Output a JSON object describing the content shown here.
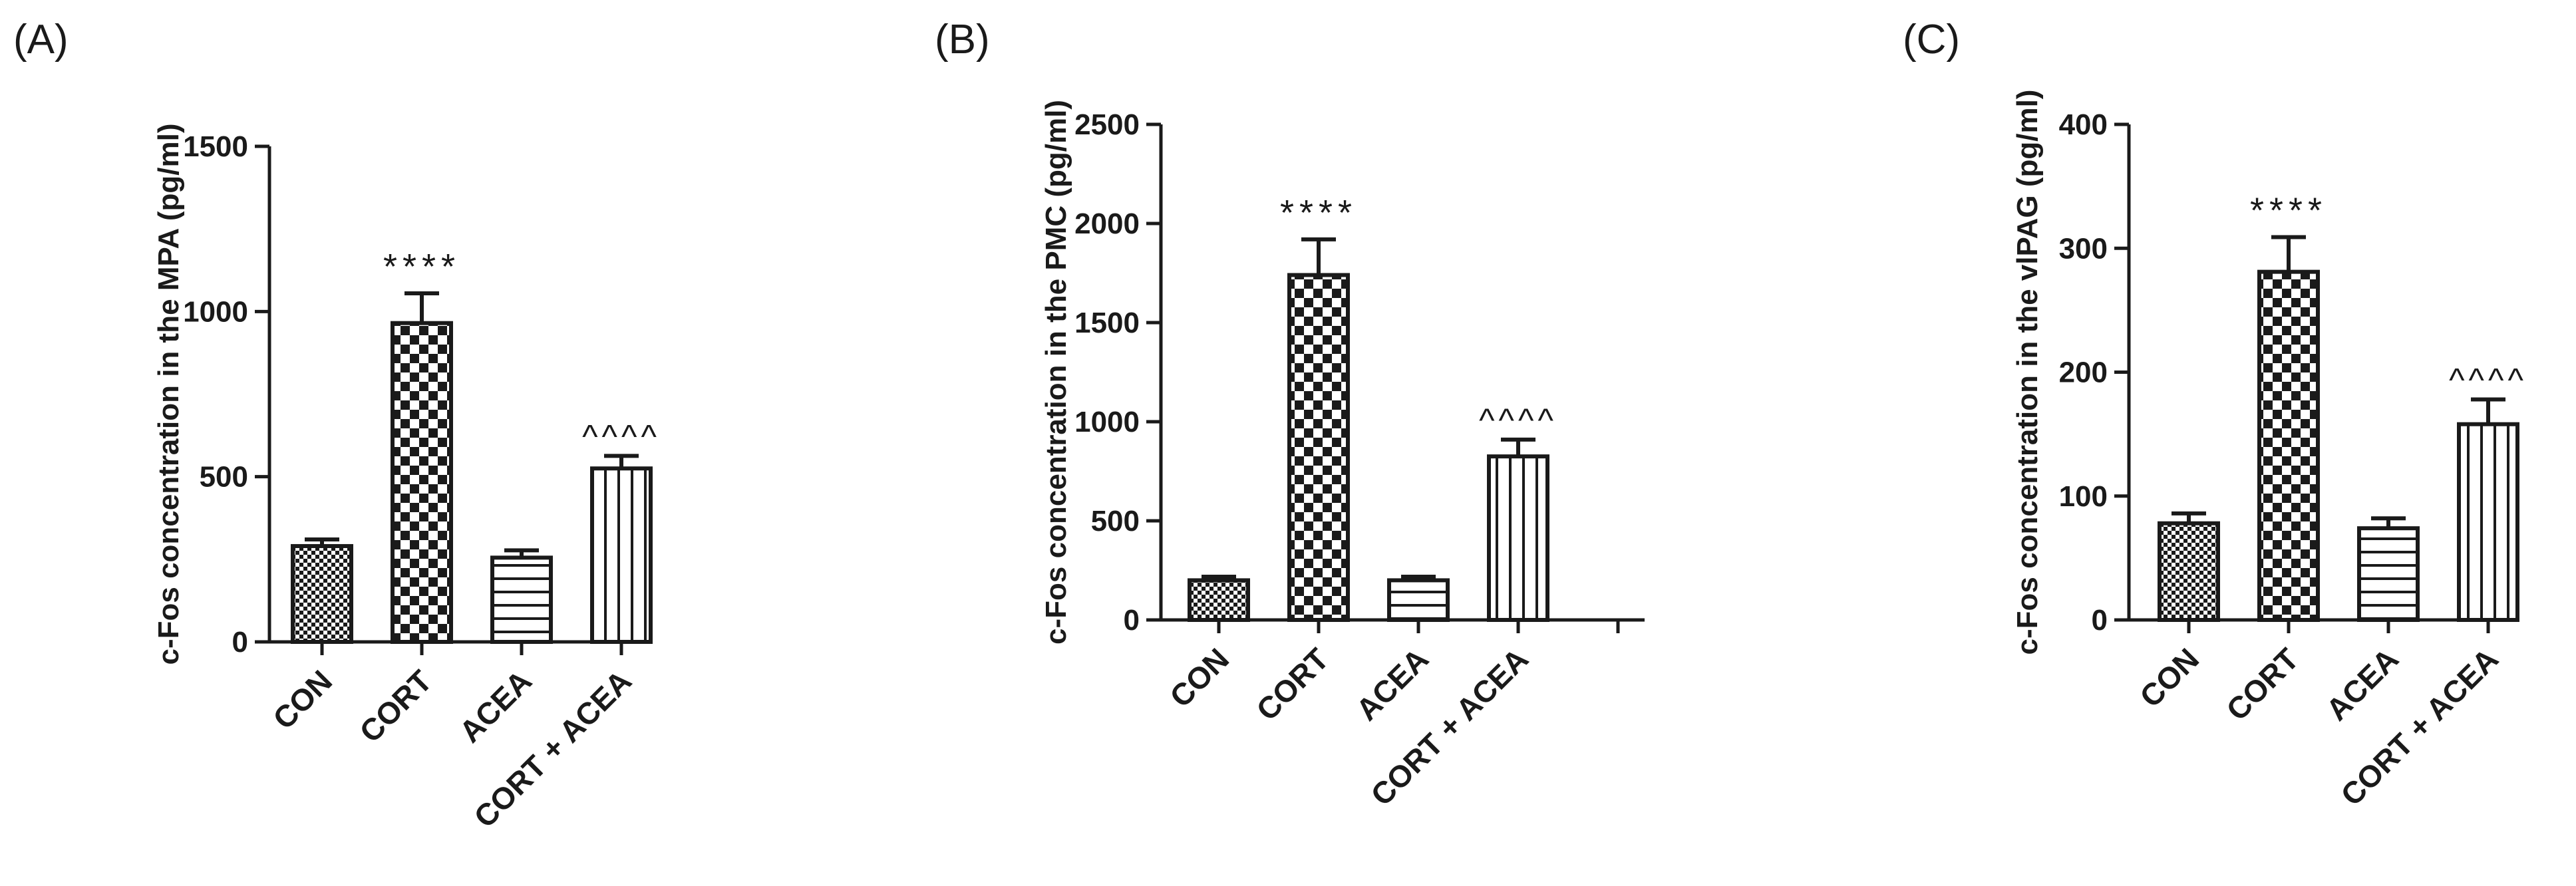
{
  "chart_data": [
    {
      "type": "bar",
      "panel_label": "(A)",
      "ylabel": "c-Fos concentration in the MPA (pg/ml)",
      "ylim": [
        0,
        1500
      ],
      "yticks": [
        0,
        500,
        1000,
        1500
      ],
      "categories": [
        "CON",
        "CORT",
        "ACEA",
        "CORT + ACEA"
      ],
      "values": [
        290,
        965,
        255,
        525
      ],
      "errors": [
        20,
        90,
        22,
        38
      ],
      "patterns": [
        "fine-check",
        "checker",
        "horizontal",
        "vertical"
      ],
      "annotations": [
        "",
        "****",
        "",
        "^^^^"
      ],
      "grid": false,
      "legend": "none"
    },
    {
      "type": "bar",
      "panel_label": "(B)",
      "ylabel": "c-Fos concentration in the PMC (pg/ml)",
      "ylim": [
        0,
        2500
      ],
      "yticks": [
        0,
        500,
        1000,
        1500,
        2000,
        2500
      ],
      "categories": [
        "CON",
        "CORT",
        "ACEA",
        "CORT + ACEA"
      ],
      "values": [
        200,
        1740,
        200,
        825
      ],
      "errors": [
        18,
        180,
        18,
        85
      ],
      "patterns": [
        "fine-check",
        "checker",
        "horizontal",
        "vertical"
      ],
      "annotations": [
        "",
        "****",
        "",
        "^^^^"
      ],
      "grid": false,
      "legend": "none"
    },
    {
      "type": "bar",
      "panel_label": "(C)",
      "ylabel": "c-Fos concentration in the vlPAG (pg/ml)",
      "ylim": [
        0,
        400
      ],
      "yticks": [
        0,
        100,
        200,
        300,
        400
      ],
      "categories": [
        "CON",
        "CORT",
        "ACEA",
        "CORT + ACEA"
      ],
      "values": [
        78,
        281,
        74,
        158
      ],
      "errors": [
        8,
        28,
        8,
        20
      ],
      "patterns": [
        "fine-check",
        "checker",
        "horizontal",
        "vertical"
      ],
      "annotations": [
        "",
        "****",
        "",
        "^^^^"
      ],
      "grid": false,
      "legend": "none"
    }
  ],
  "colors": {
    "ink": "#1a1a1a",
    "background": "#ffffff"
  }
}
